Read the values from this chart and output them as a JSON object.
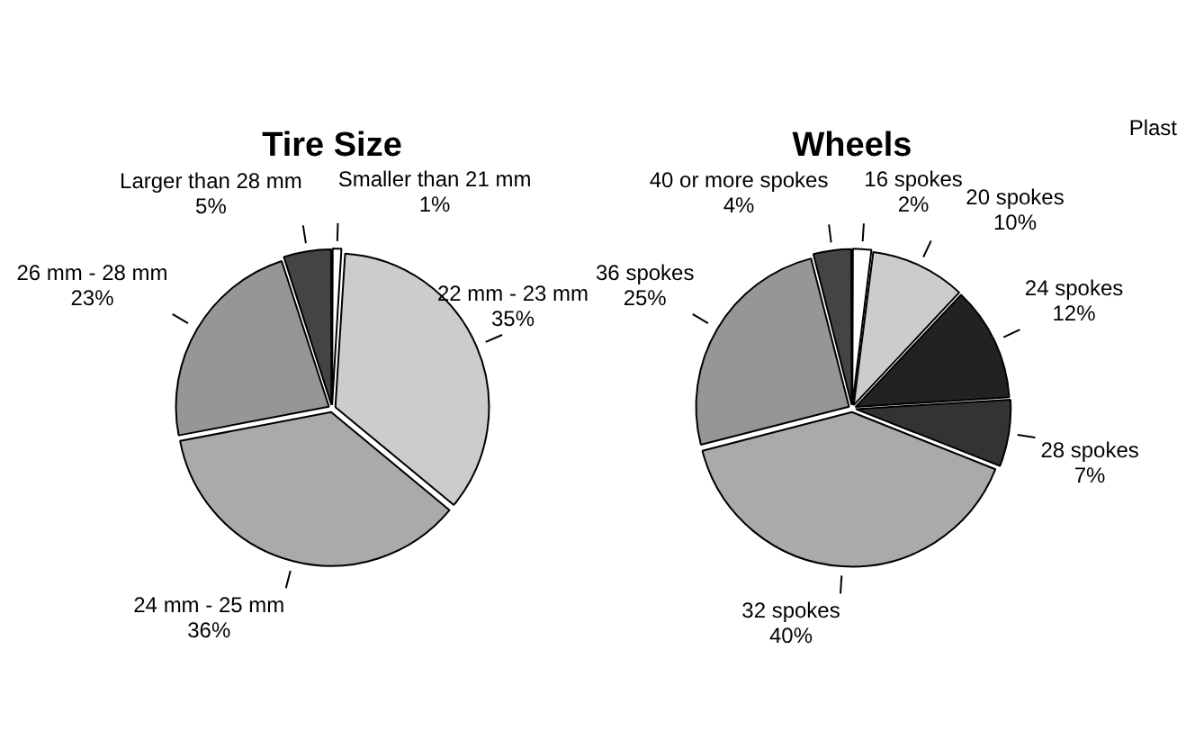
{
  "chart_data": [
    {
      "type": "pie",
      "title": "Tire Size",
      "categories": [
        "Smaller than 21 mm",
        "22 mm - 23 mm",
        "24 mm - 25 mm",
        "26 mm - 28 mm",
        "Larger than 28 mm"
      ],
      "values": [
        1,
        35,
        36,
        23,
        5
      ],
      "value_labels": [
        "1%",
        "35%",
        "36%",
        "23%",
        "5%"
      ],
      "colors": [
        "#ffffff",
        "#cccccc",
        "#aaaaaa",
        "#969696",
        "#444444"
      ],
      "legend": false
    },
    {
      "type": "pie",
      "title": "Wheels",
      "categories": [
        "16 spokes",
        "20 spokes",
        "24 spokes",
        "28 spokes",
        "32 spokes",
        "36 spokes",
        "40 or more spokes"
      ],
      "values": [
        2,
        10,
        12,
        7,
        40,
        25,
        4
      ],
      "value_labels": [
        "2%",
        "10%",
        "12%",
        "7%",
        "40%",
        "25%",
        "4%"
      ],
      "colors": [
        "#ffffff",
        "#cccccc",
        "#222222",
        "#333333",
        "#aaaaaa",
        "#969696",
        "#444444"
      ],
      "legend": false,
      "annotations": [
        "Plast"
      ]
    }
  ]
}
